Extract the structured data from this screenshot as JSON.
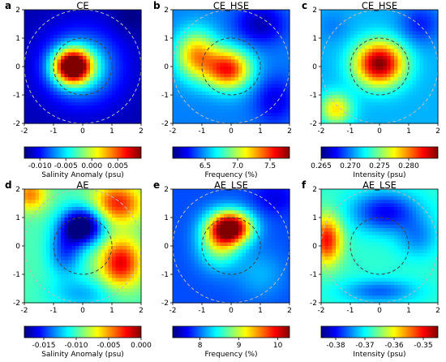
{
  "chart_data": [
    {
      "type": "heatmap",
      "panel_label": "a",
      "title": "CE",
      "x": {
        "ticks": [
          -2,
          -1,
          0,
          1,
          2
        ],
        "lim": [
          -2,
          2
        ]
      },
      "y": {
        "ticks": [
          -2,
          -1,
          0,
          1,
          2
        ],
        "lim": [
          -2,
          2
        ]
      },
      "field": {
        "base": 0.05,
        "blobs": [
          {
            "x": -0.35,
            "y": 0.0,
            "amp": 0.95,
            "sx": 0.45,
            "sy": 0.42
          },
          {
            "x": 0.0,
            "y": 0.0,
            "amp": 0.3,
            "sx": 0.9,
            "sy": 0.9
          },
          {
            "x": 1.6,
            "y": 1.7,
            "amp": -0.05,
            "sx": 0.4,
            "sy": 0.4
          }
        ]
      },
      "circles_radius": [
        1,
        2
      ],
      "colorbar": {
        "label": "Salinity Anomaly (psu)",
        "min": -0.013,
        "max": 0.0095,
        "ticks": [
          -0.01,
          -0.005,
          0.0,
          0.005
        ],
        "tick_labels": [
          "-0.010",
          "-0.005",
          "0.000",
          "0.005"
        ]
      }
    },
    {
      "type": "heatmap",
      "panel_label": "b",
      "title": "CE_HSE",
      "x": {
        "ticks": [
          -2,
          -1,
          0,
          1,
          2
        ],
        "lim": [
          -2,
          2
        ]
      },
      "y": {
        "ticks": [
          -2,
          -1,
          0,
          1,
          2
        ],
        "lim": [
          -2,
          2
        ]
      },
      "field": {
        "base": 0.25,
        "blobs": [
          {
            "x": -0.1,
            "y": -0.1,
            "amp": 0.6,
            "sx": 0.55,
            "sy": 0.5
          },
          {
            "x": -1.2,
            "y": 0.4,
            "amp": 0.45,
            "sx": 0.5,
            "sy": 0.6
          },
          {
            "x": 1.0,
            "y": 1.5,
            "amp": -0.2,
            "sx": 0.6,
            "sy": 0.5
          },
          {
            "x": 1.5,
            "y": -1.2,
            "amp": -0.15,
            "sx": 0.5,
            "sy": 0.6
          }
        ]
      },
      "circles_radius": [
        1,
        2
      ],
      "colorbar": {
        "label": "Frequency (%)",
        "min": 6.0,
        "max": 7.8,
        "ticks": [
          6.5,
          7.0,
          7.5
        ],
        "tick_labels": [
          "6.5",
          "7.0",
          "7.5"
        ]
      }
    },
    {
      "type": "heatmap",
      "panel_label": "c",
      "title": "CE_HSE",
      "x": {
        "ticks": [
          -2,
          -1,
          0,
          1,
          2
        ],
        "lim": [
          -2,
          2
        ]
      },
      "y": {
        "ticks": [
          -2,
          -1,
          0,
          1,
          2
        ],
        "lim": [
          -2,
          2
        ]
      },
      "field": {
        "base": 0.3,
        "blobs": [
          {
            "x": 0.0,
            "y": 0.1,
            "amp": 0.7,
            "sx": 0.6,
            "sy": 0.55
          },
          {
            "x": -1.5,
            "y": -1.5,
            "amp": 0.35,
            "sx": 0.4,
            "sy": 0.4
          },
          {
            "x": 1.4,
            "y": 1.5,
            "amp": -0.15,
            "sx": 0.5,
            "sy": 0.5
          },
          {
            "x": -1.6,
            "y": 1.4,
            "amp": -0.05,
            "sx": 0.4,
            "sy": 0.4
          }
        ]
      },
      "circles_radius": [
        1,
        2
      ],
      "colorbar": {
        "label": "Intensity (psu)",
        "min": 0.265,
        "max": 0.285,
        "ticks": [
          0.265,
          0.27,
          0.275,
          0.28
        ],
        "tick_labels": [
          "0.265",
          "0.270",
          "0.275",
          "0.280"
        ]
      }
    },
    {
      "type": "heatmap",
      "panel_label": "d",
      "title": "AE",
      "x": {
        "ticks": [
          -2,
          -1,
          0,
          1,
          2
        ],
        "lim": [
          -2,
          2
        ]
      },
      "y": {
        "ticks": [
          -2,
          -1,
          0,
          1,
          2
        ],
        "lim": [
          -2,
          2
        ]
      },
      "field": {
        "base": 0.45,
        "blobs": [
          {
            "x": 0.0,
            "y": 0.7,
            "amp": -0.55,
            "sx": 0.5,
            "sy": 0.45
          },
          {
            "x": -0.6,
            "y": -0.2,
            "amp": -0.25,
            "sx": 0.4,
            "sy": 0.6
          },
          {
            "x": 1.3,
            "y": -0.6,
            "amp": 0.45,
            "sx": 0.5,
            "sy": 0.6
          },
          {
            "x": 1.2,
            "y": 1.5,
            "amp": 0.4,
            "sx": 0.6,
            "sy": 0.5
          },
          {
            "x": -1.8,
            "y": 1.8,
            "amp": 0.3,
            "sx": 0.4,
            "sy": 0.4
          },
          {
            "x": 0.0,
            "y": -1.7,
            "amp": -0.15,
            "sx": 0.8,
            "sy": 0.4
          }
        ]
      },
      "circles_radius": [
        1,
        2
      ],
      "colorbar": {
        "label": "Salinity Anomaly (psu)",
        "min": -0.018,
        "max": 0.0,
        "ticks": [
          -0.015,
          -0.01,
          -0.005,
          0.0
        ],
        "tick_labels": [
          "-0.015",
          "-0.010",
          "-0.005",
          "0.000"
        ]
      }
    },
    {
      "type": "heatmap",
      "panel_label": "e",
      "title": "AE_LSE",
      "x": {
        "ticks": [
          -2,
          -1,
          0,
          1,
          2
        ],
        "lim": [
          -2,
          2
        ]
      },
      "y": {
        "ticks": [
          -2,
          -1,
          0,
          1,
          2
        ],
        "lim": [
          -2,
          2
        ]
      },
      "field": {
        "base": 0.2,
        "blobs": [
          {
            "x": 0.0,
            "y": 0.65,
            "amp": 0.8,
            "sx": 0.5,
            "sy": 0.4
          },
          {
            "x": -0.4,
            "y": 0.1,
            "amp": 0.35,
            "sx": 0.5,
            "sy": 0.6
          },
          {
            "x": 1.5,
            "y": 1.7,
            "amp": -0.1,
            "sx": 0.5,
            "sy": 0.4
          },
          {
            "x": 1.0,
            "y": -1.0,
            "amp": 0.1,
            "sx": 0.6,
            "sy": 0.6
          }
        ]
      },
      "circles_radius": [
        1,
        2
      ],
      "colorbar": {
        "label": "Frequency (%)",
        "min": 7.3,
        "max": 10.3,
        "ticks": [
          8,
          9,
          10
        ],
        "tick_labels": [
          "8",
          "9",
          "10"
        ]
      }
    },
    {
      "type": "heatmap",
      "panel_label": "f",
      "title": "AE_LSE",
      "x": {
        "ticks": [
          -2,
          -1,
          0,
          1,
          2
        ],
        "lim": [
          -2,
          2
        ]
      },
      "y": {
        "ticks": [
          -2,
          -1,
          0,
          1,
          2
        ],
        "lim": [
          -2,
          2
        ]
      },
      "field": {
        "base": 0.42,
        "blobs": [
          {
            "x": -1.8,
            "y": 0.2,
            "amp": 0.45,
            "sx": 0.35,
            "sy": 0.6
          },
          {
            "x": 0.2,
            "y": 1.2,
            "amp": -0.3,
            "sx": 0.8,
            "sy": 0.5
          },
          {
            "x": 1.3,
            "y": 0.3,
            "amp": -0.15,
            "sx": 0.5,
            "sy": 0.5
          },
          {
            "x": 0.0,
            "y": -1.6,
            "amp": -0.2,
            "sx": 0.9,
            "sy": 0.3
          }
        ]
      },
      "circles_radius": [
        1,
        2
      ],
      "colorbar": {
        "label": "Intensity (psu)",
        "min": -0.385,
        "max": -0.345,
        "ticks": [
          -0.38,
          -0.37,
          -0.36,
          -0.35
        ],
        "tick_labels": [
          "-0.38",
          "-0.37",
          "-0.36",
          "-0.35"
        ]
      }
    }
  ]
}
